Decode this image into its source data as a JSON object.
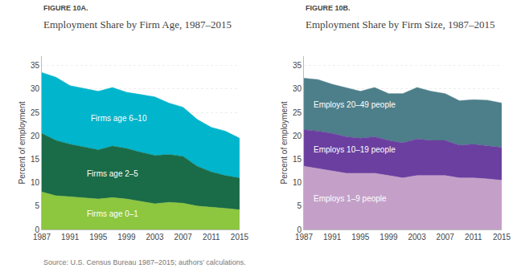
{
  "chart_data": [
    {
      "type": "area",
      "stacked": true,
      "subtitle": "FIGURE 10A.",
      "title": "Employment Share by Firm Age, 1987–2015",
      "ylabel": "Percent of employment",
      "x": [
        1987,
        1989,
        1991,
        1993,
        1995,
        1997,
        1999,
        2001,
        2003,
        2005,
        2007,
        2009,
        2011,
        2013,
        2015
      ],
      "xlim": [
        1987,
        2015
      ],
      "xticks": [
        1987,
        1991,
        1995,
        1999,
        2003,
        2007,
        2011,
        2015
      ],
      "ylim": [
        0,
        37
      ],
      "yticks": [
        0,
        5,
        10,
        15,
        20,
        25,
        30,
        35
      ],
      "grid": true,
      "series": [
        {
          "name": "Firms age 0–1",
          "color": "#8dc63f",
          "values": [
            8.0,
            7.2,
            7.0,
            6.8,
            6.5,
            6.8,
            6.5,
            6.0,
            5.5,
            5.8,
            5.6,
            5.0,
            4.8,
            4.5,
            4.2
          ]
        },
        {
          "name": "Firms age 2–5",
          "color": "#1a6b47",
          "values": [
            12.5,
            11.8,
            11.2,
            10.8,
            10.5,
            11.0,
            10.8,
            10.5,
            10.3,
            10.2,
            10.0,
            8.5,
            7.5,
            7.0,
            6.8
          ]
        },
        {
          "name": "Firms age 6–10",
          "color": "#00b5cc",
          "values": [
            13.0,
            13.5,
            12.5,
            12.5,
            12.5,
            12.5,
            12.0,
            12.3,
            12.5,
            11.0,
            10.5,
            10.0,
            9.5,
            9.5,
            8.5
          ]
        }
      ],
      "annotations": [
        "Source: U.S. Census Bureau 1987–2015; authors’ calculations."
      ]
    },
    {
      "type": "area",
      "stacked": true,
      "subtitle": "FIGURE 10B.",
      "title": "Employment Share by Firm Size, 1987–2015",
      "ylabel": "Percent of employment",
      "x": [
        1987,
        1989,
        1991,
        1993,
        1995,
        1997,
        1999,
        2001,
        2003,
        2005,
        2007,
        2009,
        2011,
        2013,
        2015
      ],
      "xlim": [
        1987,
        2015
      ],
      "xticks": [
        1987,
        1991,
        1995,
        1999,
        2003,
        2007,
        2011,
        2015
      ],
      "ylim": [
        0,
        37
      ],
      "yticks": [
        0,
        5,
        10,
        15,
        20,
        25,
        30,
        35
      ],
      "grid": true,
      "series": [
        {
          "name": "Employs 1–9 people",
          "color": "#c4a0c8",
          "values": [
            13.5,
            13.0,
            12.5,
            12.0,
            12.0,
            12.0,
            11.5,
            11.0,
            11.5,
            11.5,
            11.5,
            11.0,
            11.0,
            10.8,
            10.5
          ]
        },
        {
          "name": "Employs 10–19 people",
          "color": "#6b3fa0",
          "values": [
            7.8,
            8.0,
            8.0,
            7.8,
            7.5,
            7.8,
            7.5,
            7.5,
            7.8,
            7.5,
            7.5,
            7.0,
            7.2,
            7.0,
            7.0
          ]
        },
        {
          "name": "Employs 20–49 people",
          "color": "#4d7f8a",
          "values": [
            11.0,
            11.0,
            10.5,
            10.5,
            10.0,
            10.5,
            10.0,
            10.5,
            11.0,
            10.5,
            10.0,
            9.5,
            9.5,
            9.8,
            9.5
          ]
        }
      ]
    }
  ]
}
